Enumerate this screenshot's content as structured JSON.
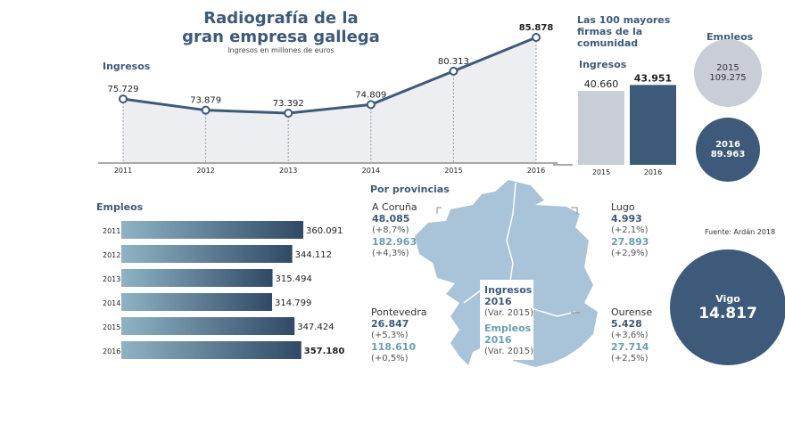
{
  "title_line1": "Radiografía de la",
  "title_line2": "gran empresa gallega",
  "subtitle": "Ingresos en millones de euros",
  "source": "Fuente: Ardán 2018",
  "colors": {
    "navy": "#3d5a7a",
    "teal": "#6a9fb5",
    "map": "#a9c4d9",
    "grey": "#c9ced6"
  },
  "chart_data": [
    {
      "type": "line",
      "title": "Ingresos",
      "categories": [
        "2011",
        "2012",
        "2013",
        "2014",
        "2015",
        "2016"
      ],
      "values": [
        75729,
        73879,
        73392,
        74809,
        80313,
        85878
      ],
      "value_labels": [
        "75.729",
        "73.879",
        "73.392",
        "74.809",
        "80.313",
        "85.878"
      ]
    },
    {
      "type": "bar",
      "orientation": "horizontal",
      "title": "Empleos",
      "categories": [
        "2011",
        "2012",
        "2013",
        "2014",
        "2015",
        "2016"
      ],
      "values": [
        360091,
        344112,
        315494,
        314799,
        347424,
        357180
      ],
      "value_labels": [
        "360.091",
        "344.112",
        "315.494",
        "314.799",
        "347.424",
        "357.180"
      ]
    },
    {
      "type": "bar",
      "title": "Las 100 mayores firmas de la comunidad",
      "subtitle": "Ingresos",
      "categories": [
        "2015",
        "2016"
      ],
      "values": [
        40660,
        43951
      ],
      "value_labels": [
        "40.660",
        "43.951"
      ]
    }
  ],
  "empleos_circles": {
    "title": "Empleos",
    "c2015": {
      "year": "2015",
      "value": "109.275"
    },
    "c2016": {
      "year": "2016",
      "value": "89.963"
    }
  },
  "vigo": {
    "name": "Vigo",
    "value": "14.817"
  },
  "provincias": {
    "title": "Por provincias",
    "legend": {
      "ing": "Ingresos",
      "ing_year": "2016",
      "var1": "(Var. 2015)",
      "emp": "Empleos",
      "emp_year": "2016",
      "var2": "(Var. 2015)"
    },
    "items": [
      {
        "name": "A Coruña",
        "ingresos": "48.085",
        "ing_var": "(+8,7%)",
        "empleos": "182.963",
        "emp_var": "(+4,3%)"
      },
      {
        "name": "Lugo",
        "ingresos": "4.993",
        "ing_var": "(+2,1%)",
        "empleos": "27.893",
        "emp_var": "(+2,9%)"
      },
      {
        "name": "Pontevedra",
        "ingresos": "26.847",
        "ing_var": "(+5,3%)",
        "empleos": "118.610",
        "emp_var": "(+0,5%)"
      },
      {
        "name": "Ourense",
        "ingresos": "5.428",
        "ing_var": "(+3,6%)",
        "empleos": "27.714",
        "emp_var": "(+2,5%)"
      }
    ]
  }
}
